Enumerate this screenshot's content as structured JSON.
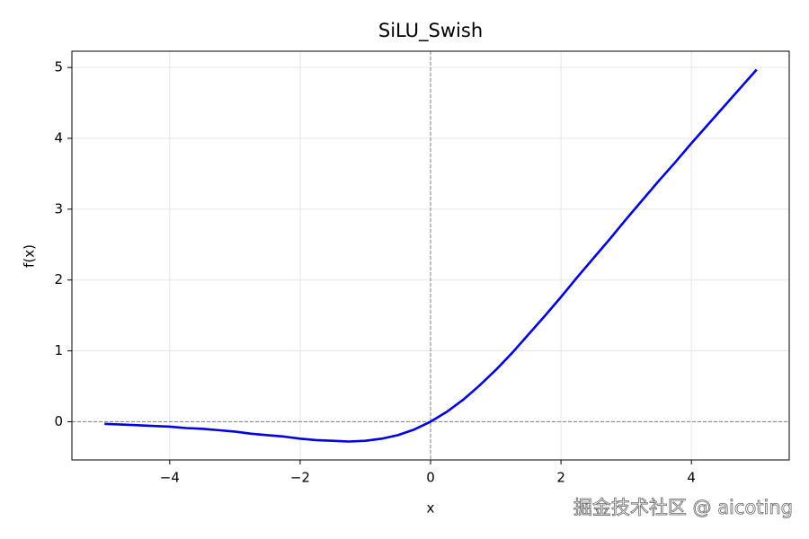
{
  "chart_data": {
    "type": "line",
    "title": "SiLU_Swish",
    "x_label": "x",
    "y_label": "f(x)",
    "x": [
      -5,
      -4.75,
      -4.5,
      -4.25,
      -4,
      -3.75,
      -3.5,
      -3.25,
      -3,
      -2.75,
      -2.5,
      -2.25,
      -2,
      -1.75,
      -1.5,
      -1.25,
      -1,
      -0.75,
      -0.5,
      -0.25,
      0,
      0.25,
      0.5,
      0.75,
      1,
      1.25,
      1.5,
      1.75,
      2,
      2.25,
      2.5,
      2.75,
      3,
      3.25,
      3.5,
      3.75,
      4,
      4.25,
      4.5,
      4.75,
      5
    ],
    "values": [
      -0.03,
      -0.04,
      -0.05,
      -0.06,
      -0.07,
      -0.09,
      -0.1,
      -0.12,
      -0.14,
      -0.17,
      -0.19,
      -0.21,
      -0.24,
      -0.26,
      -0.27,
      -0.28,
      -0.27,
      -0.24,
      -0.19,
      -0.11,
      0,
      0.14,
      0.31,
      0.51,
      0.73,
      0.97,
      1.23,
      1.49,
      1.76,
      2.04,
      2.31,
      2.58,
      2.86,
      3.13,
      3.4,
      3.66,
      3.93,
      4.19,
      4.45,
      4.71,
      4.97
    ],
    "color": "#0000e0",
    "xlim": [
      -5.5,
      5.5
    ],
    "ylim": [
      -0.54,
      5.23
    ],
    "xticks": [
      {
        "value": -4,
        "label": "−4"
      },
      {
        "value": -2,
        "label": "−2"
      },
      0,
      2,
      4
    ],
    "yticks": [
      0,
      1,
      2,
      3,
      4,
      5
    ],
    "grid": true,
    "reference_lines": {
      "x": 0,
      "y": 0
    },
    "watermark": "掘金技术社区 @ aicoting"
  }
}
